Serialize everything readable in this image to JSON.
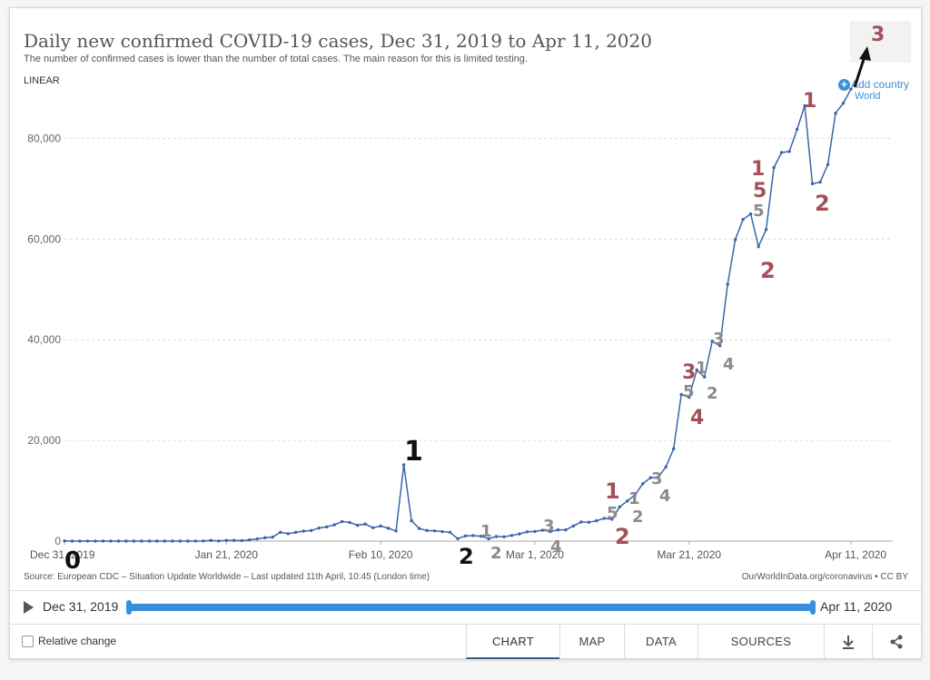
{
  "header": {
    "title": "Daily new confirmed COVID-19 cases, Dec 31, 2019 to Apr 11, 2020",
    "subtitle": "The number of confirmed cases is lower than the number of total cases. The main reason for this is limited testing.",
    "scale_label": "LINEAR",
    "add_country": "Add country",
    "series_label": "World"
  },
  "footer_notes": {
    "source": "Source: European CDC – Situation Update Worldwide – Last updated 11th April, 10:45 (London time)",
    "attribution": "OurWorldInData.org/coronavirus • CC BY"
  },
  "timeline": {
    "start": "Dec 31, 2019",
    "end": "Apr 11, 2020"
  },
  "controls": {
    "relative_change": "Relative change",
    "tabs": [
      "CHART",
      "MAP",
      "DATA",
      "SOURCES"
    ],
    "active_tab": "CHART",
    "icons": [
      "download-icon",
      "share-icon"
    ]
  },
  "colors": {
    "line": "#3b64ad",
    "accent": "#3a8fdb",
    "annot_red": "#a3505a",
    "annot_gray": "#8a8a8a",
    "annot_black": "#111111"
  },
  "chart_data": {
    "type": "line",
    "title": "Daily new confirmed COVID-19 cases, Dec 31, 2019 to Apr 11, 2020",
    "ylim": [
      0,
      90000
    ],
    "yticks": [
      0,
      20000,
      40000,
      60000,
      80000
    ],
    "ytick_labels": [
      "0",
      "20,000",
      "40,000",
      "60,000",
      "80,000"
    ],
    "xtick_labels": [
      "Dec 31, 2019",
      "Jan 21, 2020",
      "Feb 10, 2020",
      "Mar 1, 2020",
      "Mar 21, 2020",
      "Apr 11, 2020"
    ],
    "grid": true,
    "series": [
      {
        "name": "World",
        "x": [
          "2019-12-31",
          "2020-01-01",
          "2020-01-02",
          "2020-01-03",
          "2020-01-04",
          "2020-01-05",
          "2020-01-06",
          "2020-01-07",
          "2020-01-08",
          "2020-01-09",
          "2020-01-10",
          "2020-01-11",
          "2020-01-12",
          "2020-01-13",
          "2020-01-14",
          "2020-01-15",
          "2020-01-16",
          "2020-01-17",
          "2020-01-18",
          "2020-01-19",
          "2020-01-20",
          "2020-01-21",
          "2020-01-22",
          "2020-01-23",
          "2020-01-24",
          "2020-01-25",
          "2020-01-26",
          "2020-01-27",
          "2020-01-28",
          "2020-01-29",
          "2020-01-30",
          "2020-01-31",
          "2020-02-01",
          "2020-02-02",
          "2020-02-03",
          "2020-02-04",
          "2020-02-05",
          "2020-02-06",
          "2020-02-07",
          "2020-02-08",
          "2020-02-09",
          "2020-02-10",
          "2020-02-11",
          "2020-02-12",
          "2020-02-13",
          "2020-02-14",
          "2020-02-15",
          "2020-02-16",
          "2020-02-17",
          "2020-02-18",
          "2020-02-19",
          "2020-02-20",
          "2020-02-21",
          "2020-02-22",
          "2020-02-23",
          "2020-02-24",
          "2020-02-25",
          "2020-02-26",
          "2020-02-27",
          "2020-02-28",
          "2020-02-29",
          "2020-03-01",
          "2020-03-02",
          "2020-03-03",
          "2020-03-04",
          "2020-03-05",
          "2020-03-06",
          "2020-03-07",
          "2020-03-08",
          "2020-03-09",
          "2020-03-10",
          "2020-03-11",
          "2020-03-12",
          "2020-03-13",
          "2020-03-14",
          "2020-03-15",
          "2020-03-16",
          "2020-03-17",
          "2020-03-18",
          "2020-03-19",
          "2020-03-20",
          "2020-03-21",
          "2020-03-22",
          "2020-03-23",
          "2020-03-24",
          "2020-03-25",
          "2020-03-26",
          "2020-03-27",
          "2020-03-28",
          "2020-03-29",
          "2020-03-30",
          "2020-03-31",
          "2020-04-01",
          "2020-04-02",
          "2020-04-03",
          "2020-04-04",
          "2020-04-05",
          "2020-04-06",
          "2020-04-07",
          "2020-04-08",
          "2020-04-09",
          "2020-04-10",
          "2020-04-11"
        ],
        "values": [
          27,
          0,
          0,
          17,
          0,
          15,
          0,
          0,
          0,
          0,
          0,
          0,
          0,
          0,
          0,
          0,
          0,
          4,
          17,
          136,
          19,
          151,
          140,
          97,
          259,
          441,
          665,
          787,
          1753,
          1466,
          1740,
          1980,
          2099,
          2589,
          2825,
          3235,
          3884,
          3694,
          3143,
          3385,
          2652,
          3001,
          2546,
          2015,
          15152,
          4050,
          2502,
          2102,
          2018,
          1891,
          1748,
          489,
          1025,
          1086,
          965,
          467,
          918,
          854,
          1121,
          1422,
          1838,
          1911,
          2156,
          1897,
          2235,
          2228,
          3000,
          3795,
          3741,
          4041,
          4526,
          4343,
          6791,
          7978,
          9205,
          11393,
          12587,
          12708,
          14720,
          18337,
          29133,
          28574,
          34000,
          32600,
          39700,
          38800,
          51000,
          59900,
          63900,
          65000,
          58500,
          61900,
          74200,
          77200,
          77400,
          81800,
          86500,
          71000,
          71300,
          74800,
          85000,
          87000,
          89800
        ]
      }
    ],
    "annotations": [
      {
        "text": "0",
        "color": "black"
      },
      {
        "text": "1",
        "color": "black"
      },
      {
        "text": "2",
        "color": "black"
      },
      {
        "text": "1",
        "color": "gray"
      },
      {
        "text": "2",
        "color": "gray"
      },
      {
        "text": "3",
        "color": "gray"
      },
      {
        "text": "4",
        "color": "gray"
      },
      {
        "text": "1",
        "color": "red"
      },
      {
        "text": "5",
        "color": "gray"
      },
      {
        "text": "2",
        "color": "red"
      },
      {
        "text": "1",
        "color": "gray"
      },
      {
        "text": "2",
        "color": "gray"
      },
      {
        "text": "3",
        "color": "gray"
      },
      {
        "text": "4",
        "color": "gray"
      },
      {
        "text": "3",
        "color": "red"
      },
      {
        "text": "5",
        "color": "gray"
      },
      {
        "text": "4",
        "color": "red"
      },
      {
        "text": "1",
        "color": "gray"
      },
      {
        "text": "2",
        "color": "gray"
      },
      {
        "text": "3",
        "color": "gray"
      },
      {
        "text": "4",
        "color": "gray"
      },
      {
        "text": "1",
        "color": "red"
      },
      {
        "text": "5",
        "color": "red"
      },
      {
        "text": "5",
        "color": "gray"
      },
      {
        "text": "2",
        "color": "red"
      },
      {
        "text": "1",
        "color": "red"
      },
      {
        "text": "2",
        "color": "red"
      },
      {
        "text": "3",
        "color": "red"
      }
    ]
  }
}
